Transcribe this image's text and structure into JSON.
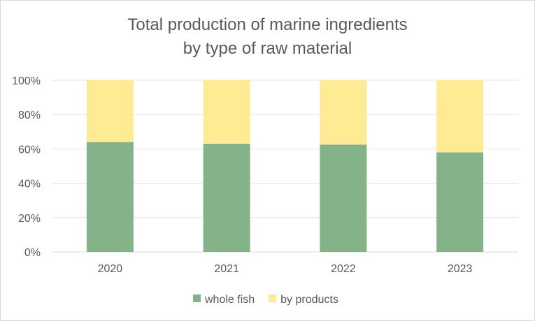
{
  "chart_data": {
    "type": "bar",
    "stacked": "percent",
    "title": [
      "Total production of marine ingredients",
      "by type of raw material"
    ],
    "xlabel": "",
    "ylabel": "",
    "categories": [
      "2020",
      "2021",
      "2022",
      "2023"
    ],
    "series": [
      {
        "name": "whole fish",
        "values": [
          64,
          63,
          62.5,
          58
        ],
        "color": "#84b389"
      },
      {
        "name": "by products",
        "values": [
          36,
          37,
          37.5,
          42
        ],
        "color": "#ffeb94"
      }
    ],
    "ylim": [
      0,
      100
    ],
    "yticks": [
      "0%",
      "20%",
      "40%",
      "60%",
      "80%",
      "100%"
    ],
    "grid": true,
    "legend": "bottom"
  }
}
